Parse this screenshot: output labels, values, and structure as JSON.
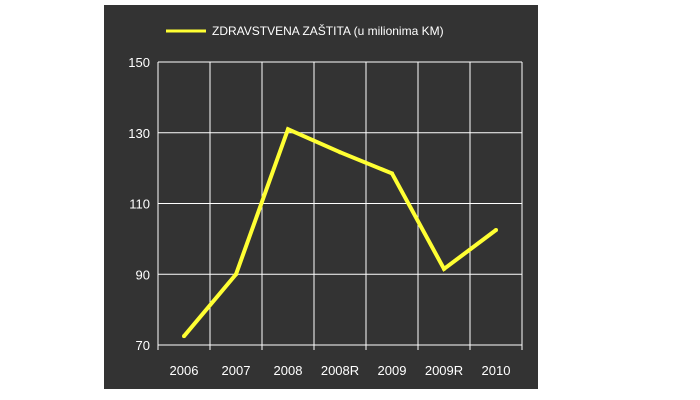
{
  "chart_data": {
    "type": "line",
    "categories": [
      "2006",
      "2007",
      "2008",
      "2008R",
      "2009",
      "2009R",
      "2010"
    ],
    "series": [
      {
        "name": "ZDRAVSTVENA ZAŠTITA  (u milionima KM)",
        "values": [
          72.5,
          90,
          131,
          124.5,
          118.5,
          91.5,
          102.5
        ]
      }
    ],
    "y_ticks": [
      "70",
      "90",
      "110",
      "130",
      "150"
    ],
    "ylim": [
      70,
      150
    ],
    "grid": true,
    "legend_position": "top",
    "colors": {
      "background": "#333333",
      "line": "#ffff33",
      "grid": "#ffffff",
      "text": "#ffffff"
    }
  }
}
